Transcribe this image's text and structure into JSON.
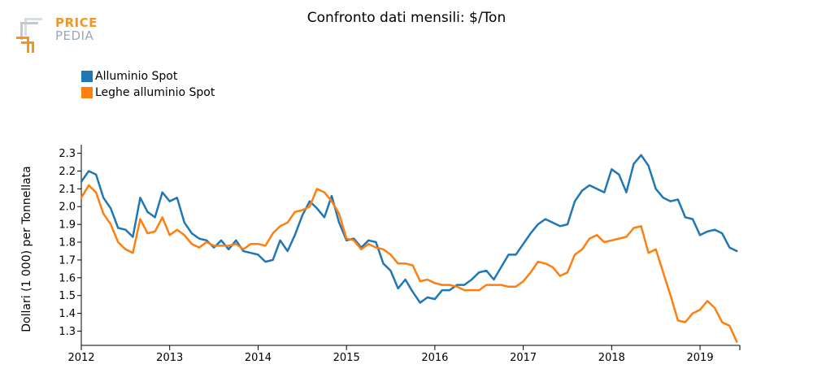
{
  "logo": {
    "line1": "PRICE",
    "line2": "PEDIA"
  },
  "chart_data": {
    "type": "line",
    "title": "Confronto dati mensili: $/Ton",
    "ylabel": "Dollari (1 000) per Tonnellata",
    "xlabel": "",
    "xlim": [
      2012.0,
      2019.45
    ],
    "ylim": [
      1.22,
      2.33
    ],
    "yticks": [
      "1.3",
      "1.4",
      "1.5",
      "1.6",
      "1.7",
      "1.8",
      "1.9",
      "2.0",
      "2.1",
      "2.2",
      "2.3"
    ],
    "xticks": [
      "2012",
      "2013",
      "2014",
      "2015",
      "2016",
      "2017",
      "2018",
      "2019"
    ],
    "grid": false,
    "legend_position": "top-left",
    "series": [
      {
        "name": "Alluminio Spot",
        "color": "#1f77b4",
        "x_start": 2012.0,
        "x_step": 0.08333,
        "values": [
          2.14,
          2.2,
          2.18,
          2.05,
          1.99,
          1.88,
          1.87,
          1.83,
          2.05,
          1.97,
          1.94,
          2.08,
          2.03,
          2.05,
          1.91,
          1.85,
          1.82,
          1.81,
          1.77,
          1.81,
          1.76,
          1.81,
          1.75,
          1.74,
          1.73,
          1.69,
          1.7,
          1.81,
          1.75,
          1.84,
          1.95,
          2.03,
          1.99,
          1.94,
          2.06,
          1.91,
          1.81,
          1.82,
          1.77,
          1.81,
          1.8,
          1.68,
          1.64,
          1.54,
          1.59,
          1.52,
          1.46,
          1.49,
          1.48,
          1.53,
          1.53,
          1.56,
          1.56,
          1.59,
          1.63,
          1.64,
          1.59,
          1.66,
          1.73,
          1.73,
          1.79,
          1.85,
          1.9,
          1.93,
          1.91,
          1.89,
          1.9,
          2.03,
          2.09,
          2.12,
          2.1,
          2.08,
          2.21,
          2.18,
          2.08,
          2.24,
          2.29,
          2.23,
          2.1,
          2.05,
          2.03,
          2.04,
          1.94,
          1.93,
          1.84,
          1.86,
          1.87,
          1.85,
          1.77,
          1.75
        ]
      },
      {
        "name": "Leghe alluminio Spot",
        "color": "#ff7f0e",
        "x_start": 2012.0,
        "x_step": 0.08333,
        "values": [
          2.05,
          2.12,
          2.08,
          1.96,
          1.9,
          1.8,
          1.76,
          1.74,
          1.93,
          1.85,
          1.86,
          1.94,
          1.84,
          1.87,
          1.84,
          1.79,
          1.77,
          1.8,
          1.78,
          1.78,
          1.78,
          1.79,
          1.76,
          1.79,
          1.79,
          1.78,
          1.85,
          1.89,
          1.91,
          1.97,
          1.98,
          2.0,
          2.1,
          2.08,
          2.03,
          1.96,
          1.82,
          1.81,
          1.76,
          1.79,
          1.77,
          1.76,
          1.73,
          1.68,
          1.68,
          1.67,
          1.58,
          1.59,
          1.57,
          1.56,
          1.56,
          1.55,
          1.53,
          1.53,
          1.53,
          1.56,
          1.56,
          1.56,
          1.55,
          1.55,
          1.58,
          1.63,
          1.69,
          1.68,
          1.66,
          1.61,
          1.63,
          1.73,
          1.76,
          1.82,
          1.84,
          1.8,
          1.81,
          1.82,
          1.83,
          1.88,
          1.89,
          1.74,
          1.76,
          1.63,
          1.5,
          1.36,
          1.35,
          1.4,
          1.42,
          1.47,
          1.43,
          1.35,
          1.33,
          1.24
        ]
      }
    ]
  }
}
